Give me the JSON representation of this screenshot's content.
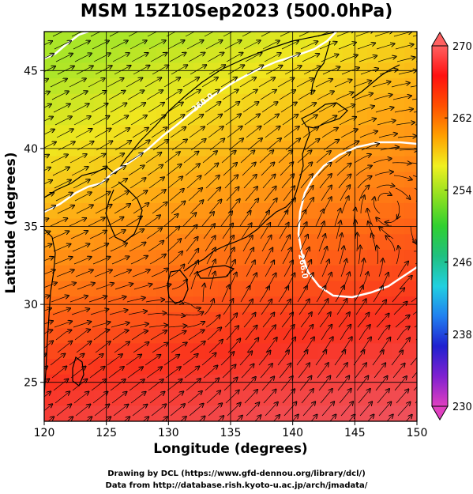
{
  "title": "MSM 15Z10Sep2023 (500.0hPa)",
  "x_axis": {
    "label": "Longitude (degrees)",
    "range": [
      120,
      150
    ],
    "ticks": [
      120,
      125,
      130,
      135,
      140,
      145,
      150
    ]
  },
  "y_axis": {
    "label": "Latitude  (degrees)",
    "range": [
      22.5,
      47.5
    ],
    "ticks": [
      25,
      30,
      35,
      40,
      45
    ]
  },
  "colorbar": {
    "range": [
      230,
      270
    ],
    "ticks": [
      230,
      238,
      246,
      254,
      262,
      270
    ],
    "colors": [
      "#e040c0",
      "#8020d0",
      "#2020d0",
      "#2080f0",
      "#20d0e0",
      "#20c080",
      "#30d030",
      "#90e020",
      "#f0f020",
      "#ffa000",
      "#ff5000",
      "#ff1010",
      "#ff6060"
    ]
  },
  "contours": [
    {
      "label": "260.0",
      "value": 260
    },
    {
      "label": "266.0",
      "value": 266
    }
  ],
  "credits": [
    "Drawing by DCL (https://www.gfd-dennou.org/library/dcl/)",
    "Data from http://database.rish.kyoto-u.ac.jp/arch/jmadata/"
  ]
}
